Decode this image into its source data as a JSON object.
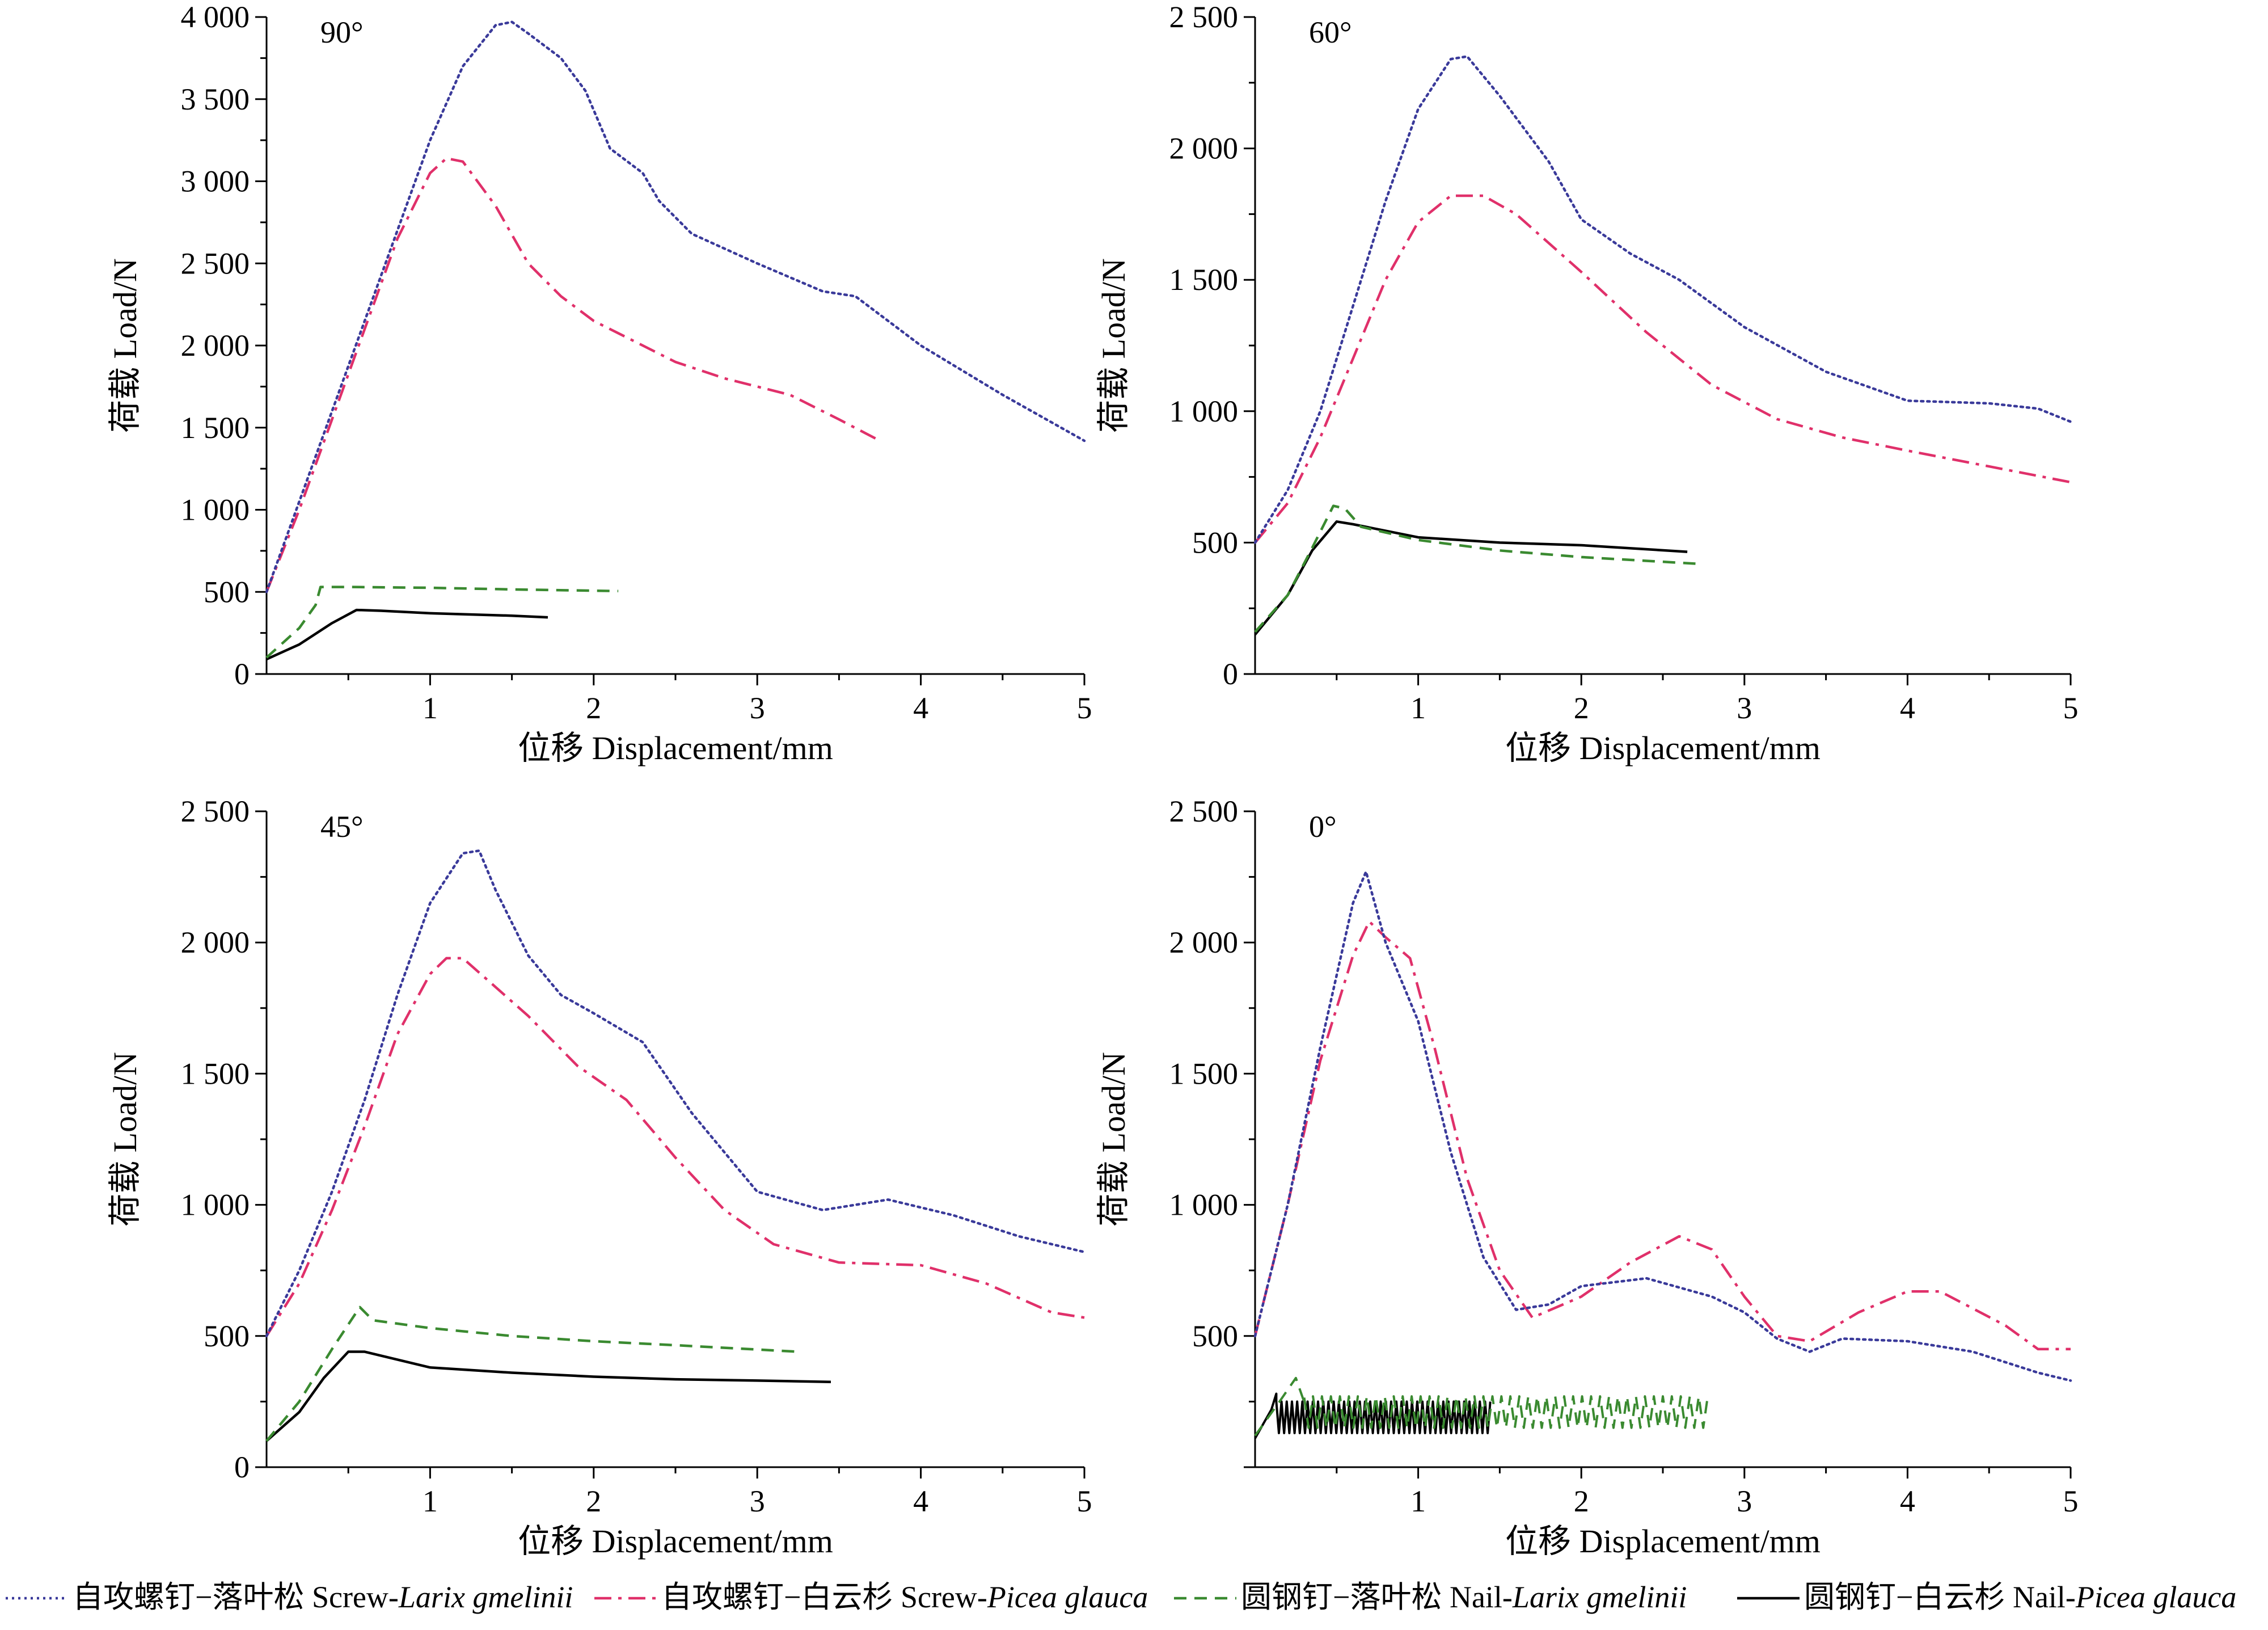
{
  "legend": [
    {
      "key": "screw_larix",
      "label_cn": "自攻螺钉−落叶松 Screw-",
      "label_latin": "Larix gmelinii",
      "color": "#3a3a9a",
      "dash": "dotted"
    },
    {
      "key": "screw_picea",
      "label_cn": "自攻螺钉−白云杉 Screw-",
      "label_latin": "Picea glauca",
      "color": "#e0306a",
      "dash": "dashdot"
    },
    {
      "key": "nail_larix",
      "label_cn": "圆钢钉−落叶松 Nail-",
      "label_latin": "Larix gmelinii",
      "color": "#3a8a30",
      "dash": "dashed"
    },
    {
      "key": "nail_picea",
      "label_cn": "圆钢钉−白云杉 Nail-",
      "label_latin": "Picea glauca",
      "color": "#000000",
      "dash": "solid"
    }
  ],
  "chart_data": [
    {
      "type": "line",
      "angle_label": "90°",
      "xlabel": "位移  Displacement/mm",
      "ylabel": "荷载  Load/N",
      "xlim": [
        0,
        5
      ],
      "ylim": [
        0,
        4000
      ],
      "xticks": [
        1,
        2,
        3,
        4,
        5
      ],
      "xtick_labels": [
        "1",
        "2",
        "3",
        "4",
        "5"
      ],
      "yticks": [
        0,
        500,
        1000,
        1500,
        2000,
        2500,
        3000,
        3500,
        4000
      ],
      "ytick_labels": [
        "0",
        "500",
        "1 000",
        "1 500",
        "2 000",
        "2 500",
        "3 000",
        "3 500",
        "4 000"
      ],
      "series": [
        {
          "key": "screw_larix",
          "x": [
            0,
            0.2,
            0.4,
            0.6,
            0.8,
            1.0,
            1.2,
            1.4,
            1.5,
            1.6,
            1.8,
            1.95,
            2.1,
            2.3,
            2.4,
            2.6,
            3.0,
            3.4,
            3.6,
            4.0,
            4.5,
            5.0
          ],
          "y": [
            500,
            1050,
            1600,
            2150,
            2700,
            3250,
            3700,
            3950,
            3970,
            3900,
            3750,
            3550,
            3200,
            3050,
            2880,
            2680,
            2500,
            2330,
            2300,
            2000,
            1700,
            1420
          ]
        },
        {
          "key": "screw_picea",
          "x": [
            0,
            0.2,
            0.4,
            0.6,
            0.8,
            1.0,
            1.1,
            1.2,
            1.4,
            1.6,
            1.8,
            2.0,
            2.2,
            2.5,
            2.8,
            3.2,
            3.5,
            3.75
          ],
          "y": [
            500,
            1000,
            1550,
            2100,
            2650,
            3050,
            3140,
            3120,
            2850,
            2500,
            2300,
            2150,
            2050,
            1900,
            1800,
            1700,
            1550,
            1420
          ]
        },
        {
          "key": "nail_larix",
          "x": [
            0,
            0.2,
            0.3,
            0.33,
            0.5,
            1.0,
            1.5,
            2.15
          ],
          "y": [
            100,
            280,
            420,
            530,
            530,
            525,
            515,
            505
          ]
        },
        {
          "key": "nail_picea",
          "x": [
            0,
            0.2,
            0.4,
            0.55,
            0.7,
            1.0,
            1.5,
            1.72
          ],
          "y": [
            90,
            180,
            310,
            390,
            385,
            370,
            355,
            345
          ]
        }
      ]
    },
    {
      "type": "line",
      "angle_label": "60°",
      "xlabel": "位移  Displacement/mm",
      "ylabel": "荷载  Load/N",
      "xlim": [
        0,
        5
      ],
      "ylim": [
        0,
        2500
      ],
      "xticks": [
        1,
        2,
        3,
        4,
        5
      ],
      "xtick_labels": [
        "1",
        "2",
        "3",
        "4",
        "5"
      ],
      "yticks": [
        0,
        500,
        1000,
        1500,
        2000,
        2500
      ],
      "ytick_labels": [
        "0",
        "500",
        "1 000",
        "1 500",
        "2 000",
        "2 500"
      ],
      "series": [
        {
          "key": "screw_larix",
          "x": [
            0,
            0.2,
            0.4,
            0.6,
            0.8,
            1.0,
            1.2,
            1.3,
            1.5,
            1.8,
            2.0,
            2.3,
            2.6,
            3.0,
            3.5,
            4.0,
            4.5,
            4.8,
            5.0
          ],
          "y": [
            500,
            700,
            1000,
            1400,
            1800,
            2150,
            2340,
            2350,
            2200,
            1950,
            1730,
            1600,
            1500,
            1320,
            1150,
            1040,
            1030,
            1010,
            960
          ]
        },
        {
          "key": "screw_picea",
          "x": [
            0,
            0.2,
            0.4,
            0.6,
            0.8,
            1.0,
            1.2,
            1.4,
            1.6,
            2.0,
            2.4,
            2.8,
            3.2,
            3.6,
            4.0,
            4.5,
            5.0
          ],
          "y": [
            500,
            650,
            900,
            1200,
            1500,
            1720,
            1820,
            1820,
            1750,
            1530,
            1300,
            1100,
            970,
            900,
            850,
            790,
            730
          ]
        },
        {
          "key": "nail_larix",
          "x": [
            0,
            0.2,
            0.35,
            0.48,
            0.55,
            0.65,
            1.0,
            1.5,
            2.0,
            2.7
          ],
          "y": [
            160,
            300,
            480,
            640,
            630,
            560,
            510,
            470,
            445,
            420
          ]
        },
        {
          "key": "nail_picea",
          "x": [
            0,
            0.2,
            0.35,
            0.5,
            0.6,
            1.0,
            1.5,
            2.0,
            2.65
          ],
          "y": [
            150,
            300,
            470,
            580,
            570,
            520,
            500,
            490,
            465
          ]
        }
      ]
    },
    {
      "type": "line",
      "angle_label": "45°",
      "xlabel": "位移  Displacement/mm",
      "ylabel": "荷载  Load/N",
      "xlim": [
        0,
        5
      ],
      "ylim": [
        0,
        2500
      ],
      "xticks": [
        1,
        2,
        3,
        4,
        5
      ],
      "xtick_labels": [
        "1",
        "2",
        "3",
        "4",
        "5"
      ],
      "yticks": [
        0,
        500,
        1000,
        1500,
        2000,
        2500
      ],
      "ytick_labels": [
        "0",
        "500",
        "1 000",
        "1 500",
        "2 000",
        "2 500"
      ],
      "series": [
        {
          "key": "screw_larix",
          "x": [
            0,
            0.2,
            0.4,
            0.6,
            0.8,
            1.0,
            1.2,
            1.3,
            1.4,
            1.6,
            1.8,
            2.0,
            2.3,
            2.6,
            3.0,
            3.4,
            3.8,
            4.2,
            4.6,
            5.0
          ],
          "y": [
            500,
            750,
            1050,
            1400,
            1800,
            2150,
            2340,
            2350,
            2200,
            1950,
            1800,
            1730,
            1620,
            1350,
            1050,
            980,
            1020,
            960,
            880,
            820
          ]
        },
        {
          "key": "screw_picea",
          "x": [
            0,
            0.2,
            0.4,
            0.6,
            0.8,
            1.0,
            1.1,
            1.2,
            1.4,
            1.6,
            1.9,
            2.2,
            2.5,
            2.8,
            3.1,
            3.5,
            4.0,
            4.4,
            4.8,
            5.0
          ],
          "y": [
            500,
            700,
            980,
            1300,
            1650,
            1880,
            1940,
            1940,
            1830,
            1720,
            1530,
            1400,
            1180,
            980,
            850,
            780,
            770,
            700,
            590,
            570
          ]
        },
        {
          "key": "nail_larix",
          "x": [
            0,
            0.2,
            0.4,
            0.57,
            0.65,
            1.0,
            1.5,
            2.0,
            2.5,
            3.25
          ],
          "y": [
            100,
            250,
            450,
            610,
            560,
            530,
            500,
            480,
            465,
            440
          ]
        },
        {
          "key": "nail_picea",
          "x": [
            0,
            0.2,
            0.35,
            0.5,
            0.6,
            1.0,
            1.5,
            2.0,
            2.5,
            3.0,
            3.45
          ],
          "y": [
            100,
            210,
            340,
            440,
            440,
            380,
            360,
            345,
            335,
            330,
            325
          ]
        }
      ]
    },
    {
      "type": "line",
      "angle_label": "0°",
      "xlabel": "位移  Displacement/mm",
      "ylabel": "荷载  Load/N",
      "xlim": [
        0,
        5
      ],
      "ylim": [
        0,
        2500
      ],
      "xticks": [
        1,
        2,
        3,
        4,
        5
      ],
      "xtick_labels": [
        "1",
        "2",
        "3",
        "4",
        "5"
      ],
      "yticks": [
        500,
        1000,
        1500,
        2000,
        2500
      ],
      "ytick_labels": [
        "500",
        "1 000",
        "1 500",
        "2 000",
        "2 500"
      ],
      "series": [
        {
          "key": "screw_larix",
          "x": [
            0,
            0.2,
            0.4,
            0.6,
            0.68,
            0.8,
            1.0,
            1.2,
            1.4,
            1.6,
            1.8,
            2.0,
            2.4,
            2.8,
            3.0,
            3.2,
            3.4,
            3.6,
            4.0,
            4.4,
            4.8,
            5.0
          ],
          "y": [
            500,
            1000,
            1600,
            2150,
            2270,
            2000,
            1700,
            1200,
            800,
            600,
            620,
            690,
            720,
            650,
            590,
            490,
            440,
            490,
            480,
            440,
            360,
            330
          ]
        },
        {
          "key": "screw_picea",
          "x": [
            0,
            0.2,
            0.4,
            0.6,
            0.7,
            0.8,
            0.95,
            1.1,
            1.3,
            1.5,
            1.7,
            2.0,
            2.3,
            2.6,
            2.8,
            3.0,
            3.2,
            3.4,
            3.7,
            4.0,
            4.2,
            4.6,
            4.8,
            5.0
          ],
          "y": [
            500,
            1000,
            1550,
            1950,
            2080,
            2020,
            1940,
            1600,
            1100,
            750,
            570,
            650,
            780,
            880,
            830,
            650,
            500,
            480,
            590,
            670,
            670,
            540,
            450,
            450
          ]
        },
        {
          "key": "nail_larix",
          "x": [
            0,
            0.15,
            0.25,
            0.3,
            2.8
          ],
          "y": [
            120,
            250,
            340,
            250,
            220
          ],
          "sawtooth": {
            "x_start": 0.3,
            "x_end": 2.8,
            "low": 150,
            "high": 270,
            "period": 0.055
          }
        },
        {
          "key": "nail_picea",
          "x": [
            0,
            0.1,
            0.13,
            1.45
          ],
          "y": [
            110,
            220,
            280,
            190
          ],
          "sawtooth": {
            "x_start": 0.13,
            "x_end": 1.45,
            "low": 130,
            "high": 250,
            "period": 0.032
          }
        }
      ]
    }
  ]
}
